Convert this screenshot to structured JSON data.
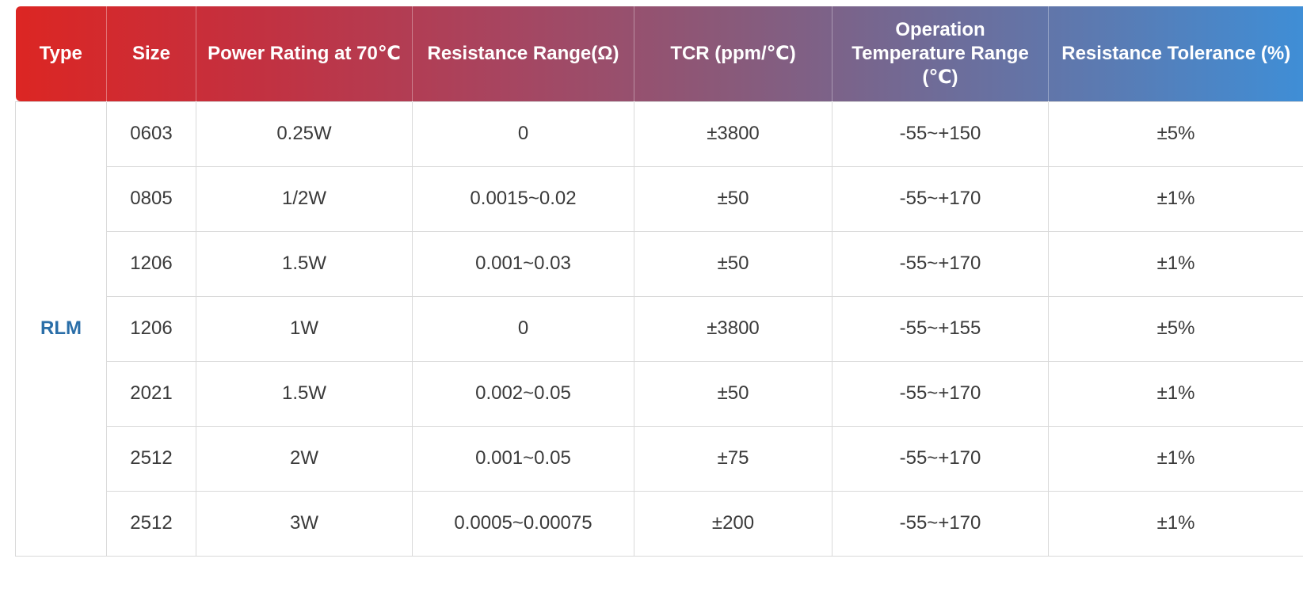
{
  "table": {
    "headers": [
      "Type",
      "Size",
      "Power Rating at 70℃",
      "Resistance Range(Ω)",
      "TCR (ppm/℃)",
      "Operation Temperature Range (℃)",
      "Resistance Tolerance (%)"
    ],
    "type_value": "RLM",
    "rows": [
      {
        "size": "0603",
        "power": "0.25W",
        "range": "0",
        "tcr": "±3800",
        "temp": "-55~+150",
        "tol": "±5%"
      },
      {
        "size": "0805",
        "power": "1/2W",
        "range": "0.0015~0.02",
        "tcr": "±50",
        "temp": "-55~+170",
        "tol": "±1%"
      },
      {
        "size": "1206",
        "power": "1.5W",
        "range": "0.001~0.03",
        "tcr": "±50",
        "temp": "-55~+170",
        "tol": "±1%"
      },
      {
        "size": "1206",
        "power": "1W",
        "range": "0",
        "tcr": "±3800",
        "temp": "-55~+155",
        "tol": "±5%"
      },
      {
        "size": "2021",
        "power": "1.5W",
        "range": "0.002~0.05",
        "tcr": "±50",
        "temp": "-55~+170",
        "tol": "±1%"
      },
      {
        "size": "2512",
        "power": "2W",
        "range": "0.001~0.05",
        "tcr": "±75",
        "temp": "-55~+170",
        "tol": "±1%"
      },
      {
        "size": "2512",
        "power": "3W",
        "range": "0.0005~0.00075",
        "tcr": "±200",
        "temp": "-55~+170",
        "tol": "±1%"
      }
    ]
  },
  "colors": {
    "header_gradient_start": "#dc2623",
    "header_gradient_end": "#3f8ed6",
    "type_text": "#2a6ea8",
    "body_text": "#3a3a3a",
    "border": "#d9d9d9"
  }
}
